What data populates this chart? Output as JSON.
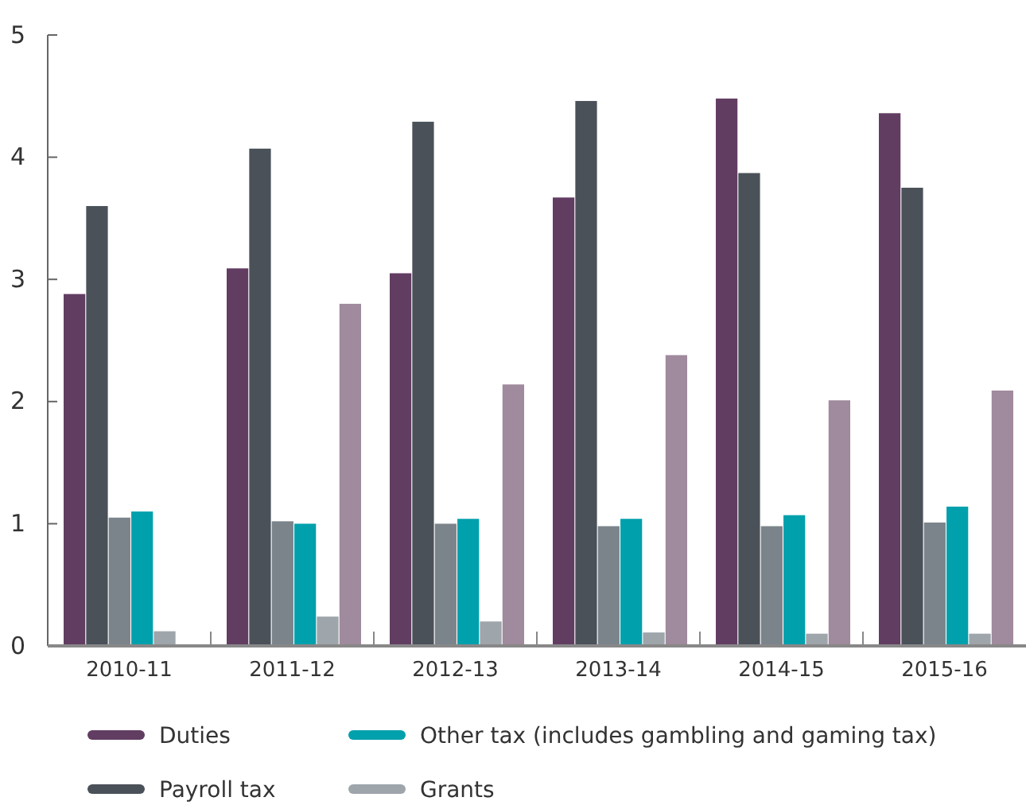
{
  "chart_data": {
    "type": "bar",
    "categories": [
      "2010-11",
      "2011-12",
      "2012-13",
      "2013-14",
      "2014-15",
      "2015-16"
    ],
    "series": [
      {
        "name": "Duties",
        "color": "#623d62",
        "values": [
          2.88,
          3.09,
          3.05,
          3.67,
          4.48,
          4.36
        ]
      },
      {
        "name": "Payroll tax",
        "color": "#4a5159",
        "values": [
          3.6,
          4.07,
          4.29,
          4.46,
          3.87,
          3.75
        ]
      },
      {
        "color": "#7c848b",
        "values": [
          1.05,
          1.02,
          1.0,
          0.98,
          0.98,
          1.01
        ]
      },
      {
        "name": "Other tax (includes gambling and gaming tax)",
        "color": "#00a0ac",
        "values": [
          1.1,
          1.0,
          1.04,
          1.04,
          1.07,
          1.14
        ]
      },
      {
        "name": "Grants",
        "color": "#9ea5ab",
        "values": [
          0.12,
          0.24,
          0.2,
          0.11,
          0.1,
          0.1
        ]
      },
      {
        "color": "#a08a9d",
        "values": [
          null,
          2.8,
          2.14,
          2.38,
          2.01,
          2.09
        ]
      }
    ],
    "ylim": [
      0,
      5
    ],
    "yticks": [
      0,
      1,
      2,
      3,
      4,
      5
    ],
    "grid": false,
    "legend": "bottom"
  }
}
